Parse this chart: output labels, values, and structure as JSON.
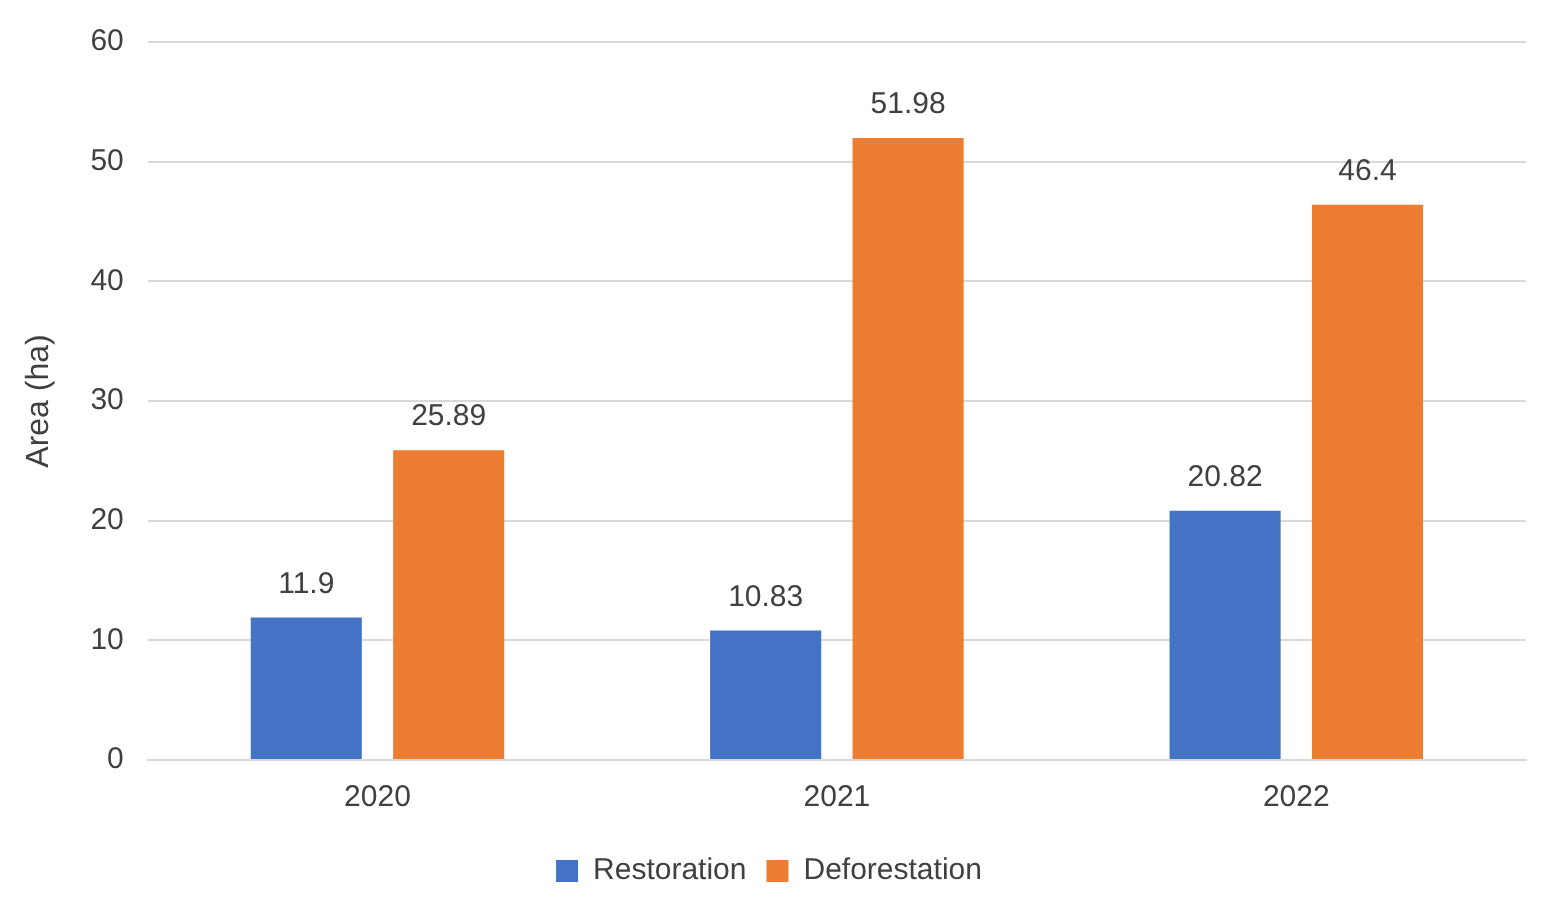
{
  "chart_data": {
    "type": "bar",
    "ylabel": "Area (ha)",
    "categories": [
      "2020",
      "2021",
      "2022"
    ],
    "series": [
      {
        "name": "Restoration",
        "color": "#4472c4",
        "values": [
          11.9,
          10.83,
          20.82
        ]
      },
      {
        "name": "Deforestation",
        "color": "#ed7d31",
        "values": [
          25.89,
          51.98,
          46.4
        ]
      }
    ],
    "ylim": [
      0,
      60
    ],
    "yticks": [
      0,
      10,
      20,
      30,
      40,
      50,
      60
    ],
    "grid": "y",
    "legend": "bottom",
    "data_labels": true
  }
}
